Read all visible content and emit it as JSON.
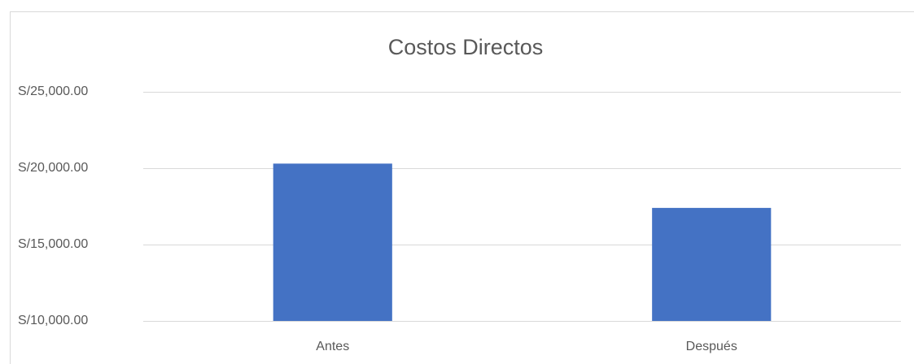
{
  "chart_data": {
    "type": "bar",
    "title": "Costos Directos",
    "categories": [
      "Antes",
      "Después"
    ],
    "values": [
      20300,
      17400
    ],
    "color": "#4472c4",
    "ylim": [
      10000,
      25000
    ],
    "yticks": [
      {
        "value": 10000,
        "label": "S/10,000.00"
      },
      {
        "value": 15000,
        "label": "S/15,000.00"
      },
      {
        "value": 20000,
        "label": "S/20,000.00"
      },
      {
        "value": 25000,
        "label": "S/25,000.00"
      }
    ],
    "grid": true
  }
}
